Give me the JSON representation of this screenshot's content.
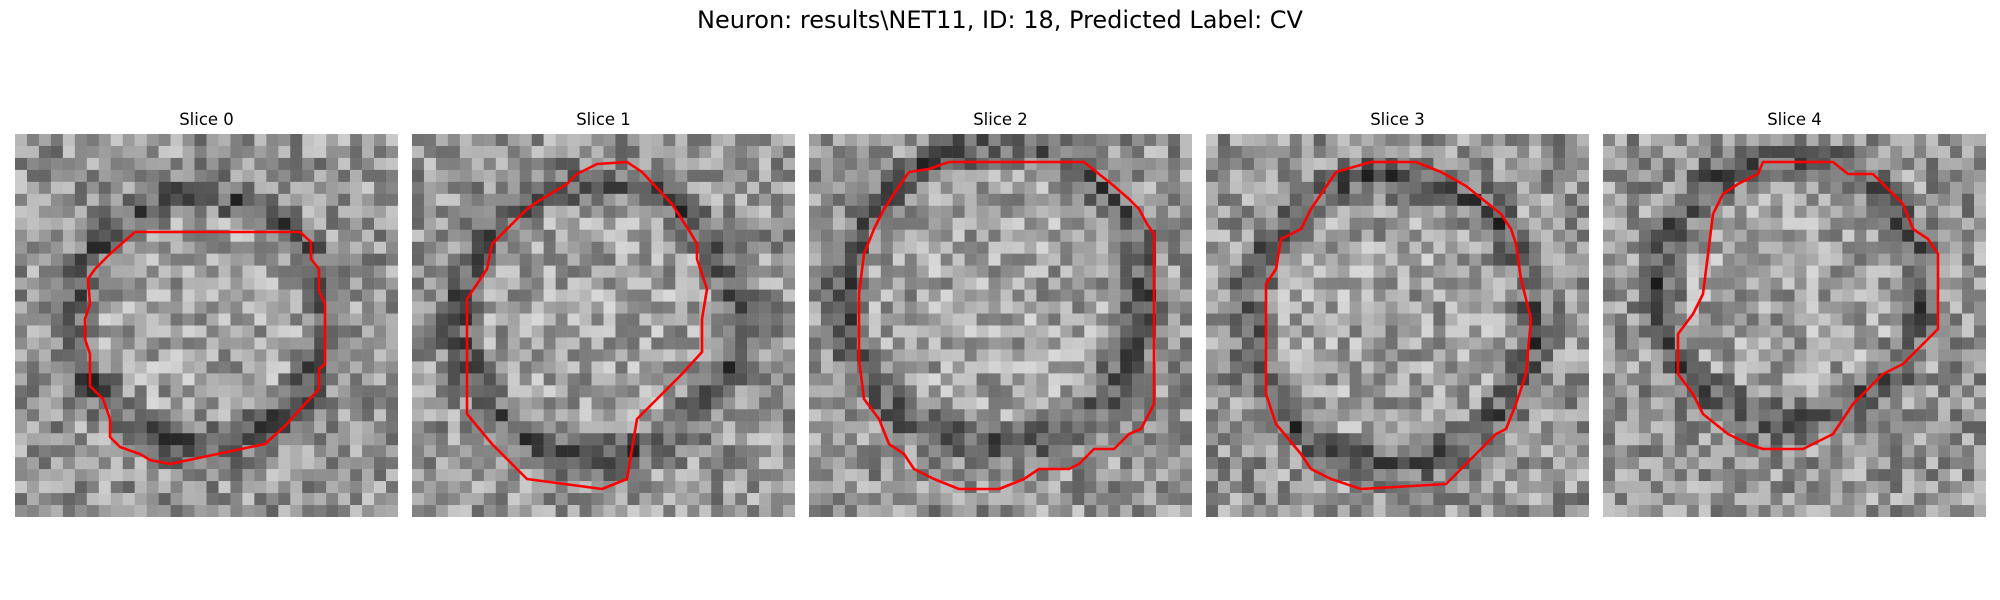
{
  "figure": {
    "title": "Neuron: results\\NET11, ID: 18, Predicted Label: CV"
  },
  "slices": [
    {
      "title": "Slice 0"
    },
    {
      "title": "Slice 1"
    },
    {
      "title": "Slice 2"
    },
    {
      "title": "Slice 3"
    },
    {
      "title": "Slice 4"
    }
  ],
  "colors": {
    "contour": "#ff0000",
    "image_colormap": "grayscale"
  }
}
